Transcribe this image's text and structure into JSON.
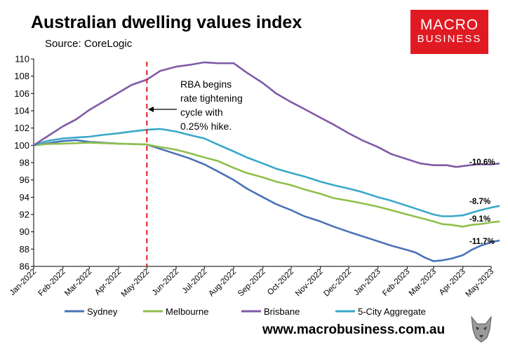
{
  "title": "Australian dwelling values index",
  "subtitle": "Source: CoreLogic",
  "logo": {
    "line1": "MACRO",
    "line2": "BUSINESS"
  },
  "footer_url": "www.macrobusiness.com.au",
  "chart_data": {
    "type": "line",
    "title": "Australian dwelling values index",
    "xlabel": "",
    "ylabel": "",
    "ylim": [
      86,
      110
    ],
    "yticks": [
      86,
      88,
      90,
      92,
      94,
      96,
      98,
      100,
      102,
      104,
      106,
      108,
      110
    ],
    "xlim": [
      "2022-01-01",
      "2023-05-01"
    ],
    "xticks": [
      "Jan-2022",
      "Feb-2022",
      "Mar-2022",
      "Apr-2022",
      "May-2022",
      "Jun-2022",
      "Jul-2022",
      "Aug-2022",
      "Sep-2022",
      "Oct-2022",
      "Nov-2022",
      "Dec-2022",
      "Jan-2023",
      "Feb-2023",
      "Mar-2023",
      "Apr-2023",
      "May-2023"
    ],
    "grid": false,
    "legend_position": "bottom",
    "series": [
      {
        "name": "Sydney",
        "color": "#4a72b8",
        "end_label": "-11.7%",
        "points": [
          [
            "2022-01-01",
            100.0
          ],
          [
            "2022-02-01",
            100.5
          ],
          [
            "2022-02-15",
            100.6
          ],
          [
            "2022-03-01",
            100.4
          ],
          [
            "2022-03-15",
            100.3
          ],
          [
            "2022-04-01",
            100.2
          ],
          [
            "2022-04-15",
            100.15
          ],
          [
            "2022-05-01",
            100.1
          ],
          [
            "2022-05-15",
            99.6
          ],
          [
            "2022-06-01",
            99.0
          ],
          [
            "2022-06-15",
            98.5
          ],
          [
            "2022-07-01",
            97.8
          ],
          [
            "2022-07-15",
            97.0
          ],
          [
            "2022-08-01",
            96.0
          ],
          [
            "2022-08-15",
            95.0
          ],
          [
            "2022-09-01",
            94.0
          ],
          [
            "2022-09-15",
            93.2
          ],
          [
            "2022-10-01",
            92.5
          ],
          [
            "2022-10-15",
            91.8
          ],
          [
            "2022-11-01",
            91.2
          ],
          [
            "2022-11-15",
            90.6
          ],
          [
            "2022-12-01",
            90.0
          ],
          [
            "2022-12-15",
            89.5
          ],
          [
            "2023-01-01",
            88.9
          ],
          [
            "2023-01-15",
            88.4
          ],
          [
            "2023-02-01",
            87.9
          ],
          [
            "2023-02-10",
            87.6
          ],
          [
            "2023-02-20",
            87.0
          ],
          [
            "2023-03-01",
            86.6
          ],
          [
            "2023-03-10",
            86.7
          ],
          [
            "2023-03-20",
            86.9
          ],
          [
            "2023-04-01",
            87.3
          ],
          [
            "2023-04-10",
            87.9
          ],
          [
            "2023-04-20",
            88.4
          ],
          [
            "2023-05-01",
            88.8
          ],
          [
            "2023-05-10",
            89.0
          ]
        ]
      },
      {
        "name": "Melbourne",
        "color": "#8fc04c",
        "end_label": "-9.1%",
        "points": [
          [
            "2022-01-01",
            100.0
          ],
          [
            "2022-01-15",
            100.15
          ],
          [
            "2022-02-01",
            100.2
          ],
          [
            "2022-03-01",
            100.3
          ],
          [
            "2022-04-01",
            100.2
          ],
          [
            "2022-05-01",
            100.1
          ],
          [
            "2022-05-15",
            99.8
          ],
          [
            "2022-06-01",
            99.5
          ],
          [
            "2022-06-15",
            99.1
          ],
          [
            "2022-07-01",
            98.6
          ],
          [
            "2022-07-15",
            98.2
          ],
          [
            "2022-08-01",
            97.4
          ],
          [
            "2022-08-15",
            96.8
          ],
          [
            "2022-09-01",
            96.3
          ],
          [
            "2022-09-15",
            95.8
          ],
          [
            "2022-10-01",
            95.4
          ],
          [
            "2022-10-15",
            94.9
          ],
          [
            "2022-11-01",
            94.4
          ],
          [
            "2022-11-15",
            93.9
          ],
          [
            "2022-12-01",
            93.6
          ],
          [
            "2022-12-15",
            93.3
          ],
          [
            "2023-01-01",
            92.9
          ],
          [
            "2023-01-15",
            92.5
          ],
          [
            "2023-02-01",
            92.0
          ],
          [
            "2023-02-15",
            91.6
          ],
          [
            "2023-03-01",
            91.2
          ],
          [
            "2023-03-10",
            90.9
          ],
          [
            "2023-03-20",
            90.8
          ],
          [
            "2023-04-01",
            90.6
          ],
          [
            "2023-04-10",
            90.8
          ],
          [
            "2023-04-20",
            90.9
          ],
          [
            "2023-05-01",
            91.1
          ],
          [
            "2023-05-10",
            91.2
          ]
        ]
      },
      {
        "name": "Brisbane",
        "color": "#7f5ba6",
        "end_label": "-10.6%",
        "points": [
          [
            "2022-01-01",
            100.0
          ],
          [
            "2022-01-15",
            101.0
          ],
          [
            "2022-02-01",
            102.2
          ],
          [
            "2022-02-15",
            103.0
          ],
          [
            "2022-03-01",
            104.1
          ],
          [
            "2022-03-15",
            105.0
          ],
          [
            "2022-04-01",
            106.1
          ],
          [
            "2022-04-15",
            107.0
          ],
          [
            "2022-05-01",
            107.6
          ],
          [
            "2022-05-15",
            108.6
          ],
          [
            "2022-06-01",
            109.1
          ],
          [
            "2022-06-15",
            109.3
          ],
          [
            "2022-07-01",
            109.6
          ],
          [
            "2022-07-15",
            109.5
          ],
          [
            "2022-08-01",
            109.5
          ],
          [
            "2022-08-15",
            108.4
          ],
          [
            "2022-09-01",
            107.2
          ],
          [
            "2022-09-15",
            106.0
          ],
          [
            "2022-10-01",
            105.0
          ],
          [
            "2022-10-15",
            104.2
          ],
          [
            "2022-11-01",
            103.2
          ],
          [
            "2022-11-15",
            102.4
          ],
          [
            "2022-12-01",
            101.4
          ],
          [
            "2022-12-15",
            100.6
          ],
          [
            "2023-01-01",
            99.8
          ],
          [
            "2023-01-15",
            99.0
          ],
          [
            "2023-02-01",
            98.4
          ],
          [
            "2023-02-15",
            97.9
          ],
          [
            "2023-03-01",
            97.7
          ],
          [
            "2023-03-15",
            97.7
          ],
          [
            "2023-03-25",
            97.5
          ],
          [
            "2023-04-01",
            97.6
          ],
          [
            "2023-04-15",
            97.8
          ],
          [
            "2023-05-01",
            97.8
          ],
          [
            "2023-05-10",
            97.9
          ]
        ]
      },
      {
        "name": "5-City Aggregate",
        "color": "#38a8c8",
        "end_label": "-8.7%",
        "points": [
          [
            "2022-01-01",
            100.0
          ],
          [
            "2022-01-15",
            100.5
          ],
          [
            "2022-02-01",
            100.8
          ],
          [
            "2022-02-15",
            100.9
          ],
          [
            "2022-03-01",
            101.0
          ],
          [
            "2022-03-15",
            101.2
          ],
          [
            "2022-04-01",
            101.4
          ],
          [
            "2022-04-15",
            101.6
          ],
          [
            "2022-05-01",
            101.8
          ],
          [
            "2022-05-15",
            101.9
          ],
          [
            "2022-06-01",
            101.6
          ],
          [
            "2022-06-15",
            101.2
          ],
          [
            "2022-07-01",
            100.8
          ],
          [
            "2022-07-15",
            100.1
          ],
          [
            "2022-08-01",
            99.3
          ],
          [
            "2022-08-15",
            98.6
          ],
          [
            "2022-09-01",
            97.9
          ],
          [
            "2022-09-15",
            97.3
          ],
          [
            "2022-10-01",
            96.8
          ],
          [
            "2022-10-15",
            96.4
          ],
          [
            "2022-11-01",
            95.8
          ],
          [
            "2022-11-15",
            95.4
          ],
          [
            "2022-12-01",
            95.0
          ],
          [
            "2022-12-15",
            94.6
          ],
          [
            "2023-01-01",
            94.0
          ],
          [
            "2023-01-15",
            93.6
          ],
          [
            "2023-02-01",
            93.0
          ],
          [
            "2023-02-15",
            92.5
          ],
          [
            "2023-03-01",
            92.0
          ],
          [
            "2023-03-10",
            91.8
          ],
          [
            "2023-03-20",
            91.8
          ],
          [
            "2023-04-01",
            91.9
          ],
          [
            "2023-04-10",
            92.2
          ],
          [
            "2023-04-20",
            92.5
          ],
          [
            "2023-05-01",
            92.8
          ],
          [
            "2023-05-10",
            93.0
          ]
        ]
      }
    ],
    "annotation": {
      "text_lines": [
        "RBA begins",
        "rate tightening",
        "cycle with",
        "0.25% hike."
      ],
      "vline_date": "2022-05-01",
      "vline_color": "#e01a22"
    }
  }
}
